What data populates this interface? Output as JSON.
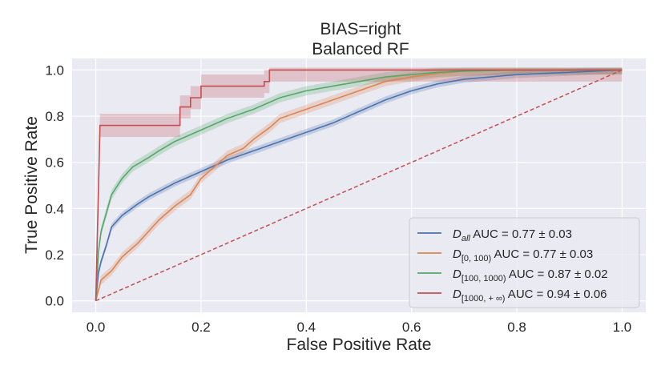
{
  "chart_data": {
    "type": "line",
    "title": "BIAS=right",
    "subtitle": "Balanced RF",
    "xlabel": "False Positive Rate",
    "ylabel": "True Positive Rate",
    "xlim": [
      -0.045,
      1.045
    ],
    "ylim": [
      -0.05,
      1.05
    ],
    "xticks": [
      0.0,
      0.2,
      0.4,
      0.6,
      0.8,
      1.0
    ],
    "yticks": [
      0.0,
      0.2,
      0.4,
      0.6,
      0.8,
      1.0
    ],
    "grid": true,
    "legend_position": "lower-right",
    "series": [
      {
        "name": "D_all",
        "legend_base": "D",
        "legend_sub": "all",
        "legend_rest": " AUC = 0.77 ± 0.03",
        "color": "#4c72b0",
        "band": 0.015,
        "x": [
          0.0,
          0.005,
          0.01,
          0.02,
          0.03,
          0.05,
          0.08,
          0.1,
          0.15,
          0.2,
          0.25,
          0.3,
          0.35,
          0.4,
          0.45,
          0.5,
          0.55,
          0.6,
          0.65,
          0.7,
          0.75,
          0.8,
          0.85,
          0.9,
          0.95,
          1.0
        ],
        "y": [
          0.0,
          0.12,
          0.17,
          0.24,
          0.32,
          0.37,
          0.42,
          0.45,
          0.51,
          0.56,
          0.61,
          0.65,
          0.69,
          0.73,
          0.77,
          0.82,
          0.87,
          0.91,
          0.94,
          0.96,
          0.97,
          0.98,
          0.985,
          0.99,
          0.995,
          1.0
        ]
      },
      {
        "name": "D_[0,100)",
        "legend_base": "D",
        "legend_sub": "[0, 100)",
        "legend_rest": " AUC = 0.77 ± 0.03",
        "color": "#dd8452",
        "band": 0.02,
        "x": [
          0.0,
          0.01,
          0.03,
          0.05,
          0.08,
          0.1,
          0.12,
          0.15,
          0.18,
          0.2,
          0.23,
          0.25,
          0.28,
          0.3,
          0.33,
          0.35,
          0.4,
          0.45,
          0.5,
          0.55,
          0.6,
          0.65,
          0.7,
          0.8,
          0.9,
          1.0
        ],
        "y": [
          0.0,
          0.09,
          0.13,
          0.19,
          0.25,
          0.3,
          0.35,
          0.41,
          0.46,
          0.53,
          0.59,
          0.63,
          0.66,
          0.7,
          0.75,
          0.79,
          0.83,
          0.87,
          0.91,
          0.95,
          0.97,
          0.985,
          0.995,
          1.0,
          1.0,
          1.0
        ]
      },
      {
        "name": "D_[100,1000)",
        "legend_base": "D",
        "legend_sub": "[100, 1000)",
        "legend_rest": " AUC = 0.87 ± 0.02",
        "color": "#55a868",
        "band": 0.02,
        "x": [
          0.0,
          0.005,
          0.01,
          0.02,
          0.03,
          0.05,
          0.07,
          0.1,
          0.12,
          0.15,
          0.18,
          0.2,
          0.25,
          0.3,
          0.35,
          0.4,
          0.45,
          0.5,
          0.55,
          0.6,
          0.65,
          0.7,
          0.8,
          0.9,
          1.0
        ],
        "y": [
          0.0,
          0.21,
          0.3,
          0.38,
          0.46,
          0.53,
          0.58,
          0.62,
          0.65,
          0.69,
          0.72,
          0.74,
          0.79,
          0.83,
          0.88,
          0.91,
          0.93,
          0.95,
          0.97,
          0.98,
          0.99,
          0.995,
          1.0,
          1.0,
          1.0
        ]
      },
      {
        "name": "D_[1000,+inf)",
        "legend_base": "D",
        "legend_sub": "[1000, + ∞)",
        "legend_rest": " AUC = 0.94 ± 0.06",
        "color": "#c44e52",
        "band": 0.05,
        "x": [
          0.0,
          0.008,
          0.008,
          0.16,
          0.16,
          0.18,
          0.18,
          0.2,
          0.2,
          0.32,
          0.32,
          0.33,
          0.33,
          1.0
        ],
        "y": [
          0.0,
          0.76,
          0.76,
          0.76,
          0.84,
          0.84,
          0.88,
          0.88,
          0.93,
          0.93,
          0.95,
          0.95,
          1.0,
          1.0
        ]
      }
    ],
    "reference_line": {
      "x": [
        0.0,
        1.0
      ],
      "y": [
        0.0,
        1.0
      ],
      "color": "#c44e52",
      "style": "dashed"
    }
  }
}
